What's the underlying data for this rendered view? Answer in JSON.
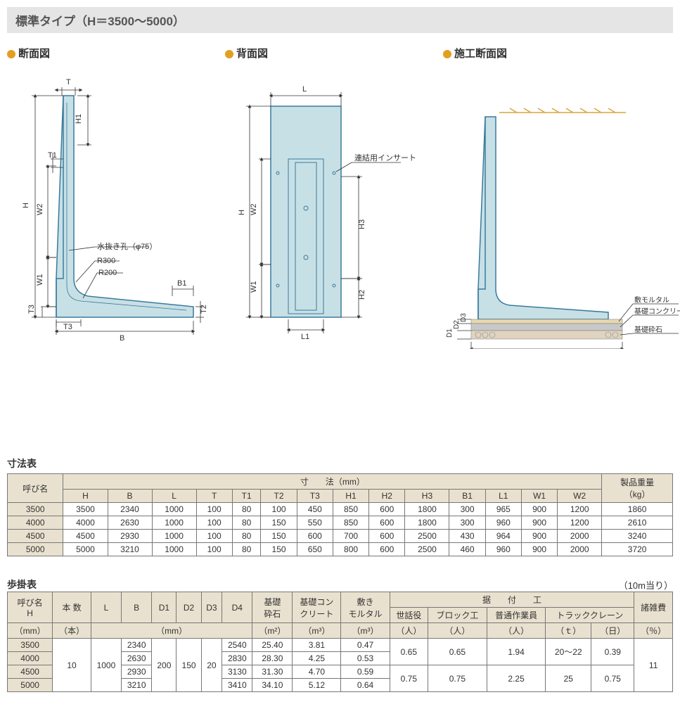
{
  "title": "標準タイプ（H＝3500〜5000）",
  "diagrams": {
    "cross": {
      "title": "断面図"
    },
    "back": {
      "title": "背面図"
    },
    "install": {
      "title": "施工断面図"
    }
  },
  "cross_labels": {
    "T": "T",
    "H": "H",
    "H1": "H1",
    "T1": "T1",
    "W1": "W1",
    "W2": "W2",
    "T3_left": "T3",
    "T3_bottom": "T3",
    "B": "B",
    "B1": "B1",
    "T2": "T2",
    "drain": "水抜き孔（φ75）",
    "R300": "R300",
    "R200": "R200"
  },
  "back_labels": {
    "L": "L",
    "H": "H",
    "W1": "W1",
    "W2": "W2",
    "H2": "H2",
    "H3": "H3",
    "L1": "L1",
    "insert": "連結用インサート"
  },
  "install_labels": {
    "D1": "D1",
    "D2": "D2",
    "D3": "D3",
    "D4": "D4",
    "mortar": "敷モルタル",
    "conc": "基礎コンクリート",
    "crushed": "基礎砕石"
  },
  "colors": {
    "bullet": "#e2a020",
    "shape_fill": "#c7e0e6",
    "shape_stroke": "#3a7a9c",
    "ground_hatch": "#d9a441",
    "dim_line": "#333333",
    "conc_fill": "#c8c8c8",
    "mortar_fill": "#e8d8b0",
    "crushed_fill": "#bca080"
  },
  "table1": {
    "title": "寸法表",
    "group_dim": "寸　　法（mm）",
    "group_weight": "製品重量\n（kg）",
    "name_col": "呼び名",
    "cols": [
      "H",
      "B",
      "L",
      "T",
      "T1",
      "T2",
      "T3",
      "H1",
      "H2",
      "H3",
      "B1",
      "L1",
      "W1",
      "W2"
    ],
    "rows": [
      {
        "name": "3500",
        "vals": [
          "3500",
          "2340",
          "1000",
          "100",
          "80",
          "100",
          "450",
          "850",
          "600",
          "1800",
          "300",
          "965",
          "900",
          "1200"
        ],
        "wt": "1860"
      },
      {
        "name": "4000",
        "vals": [
          "4000",
          "2630",
          "1000",
          "100",
          "80",
          "150",
          "550",
          "850",
          "600",
          "1800",
          "300",
          "960",
          "900",
          "1200"
        ],
        "wt": "2610"
      },
      {
        "name": "4500",
        "vals": [
          "4500",
          "2930",
          "1000",
          "100",
          "80",
          "150",
          "600",
          "700",
          "600",
          "2500",
          "430",
          "964",
          "900",
          "2000"
        ],
        "wt": "3240"
      },
      {
        "name": "5000",
        "vals": [
          "5000",
          "3210",
          "1000",
          "100",
          "80",
          "150",
          "650",
          "800",
          "600",
          "2500",
          "460",
          "960",
          "900",
          "2000"
        ],
        "wt": "3720"
      }
    ]
  },
  "table2": {
    "title": "歩掛表",
    "per": "（10m当り）",
    "name_col": "呼び名\nH",
    "name_unit": "（mm）",
    "count_col": "本 数",
    "count_unit": "（本）",
    "dim_cols": [
      "L",
      "B",
      "D1",
      "D2",
      "D3",
      "D4"
    ],
    "dim_unit": "（mm）",
    "crushed": "基礎\n砕石",
    "crushed_unit": "（m²）",
    "conc": "基礎コン\nクリート",
    "conc_unit": "（m³）",
    "mortar": "敷き\nモルタル",
    "mortar_unit": "（m³）",
    "install_group": "据　　付　　工",
    "install_cols": [
      "世話役",
      "ブロック工",
      "普通作業員",
      "トラッククレーン"
    ],
    "install_units": [
      "（人）",
      "（人）",
      "（人）",
      "（ｔ）",
      "（日）"
    ],
    "misc": "諸雑費",
    "misc_unit": "（％）",
    "rows": [
      {
        "name": "3500",
        "B": "2340",
        "D4": "2540",
        "cr": "25.40",
        "co": "3.81",
        "mo": "0.47"
      },
      {
        "name": "4000",
        "B": "2630",
        "D4": "2830",
        "cr": "28.30",
        "co": "4.25",
        "mo": "0.53"
      },
      {
        "name": "4500",
        "B": "2930",
        "D4": "3130",
        "cr": "31.30",
        "co": "4.70",
        "mo": "0.59"
      },
      {
        "name": "5000",
        "B": "3210",
        "D4": "3410",
        "cr": "34.10",
        "co": "5.12",
        "mo": "0.64"
      }
    ],
    "merged": {
      "count": "10",
      "L": "1000",
      "D1": "200",
      "D2": "150",
      "D3": "20",
      "inst1": [
        "0.65",
        "0.65",
        "1.94",
        "20～22",
        "0.39"
      ],
      "inst2": [
        "0.75",
        "0.75",
        "2.25",
        "25",
        "0.75"
      ],
      "misc": "11"
    }
  }
}
